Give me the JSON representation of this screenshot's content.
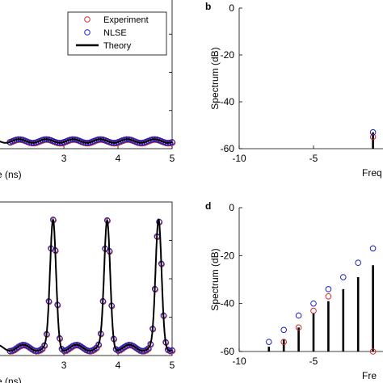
{
  "legend": {
    "position": "top-right",
    "entries": [
      {
        "label": "Experiment",
        "marker": "circle",
        "color": "#d62728"
      },
      {
        "label": "NLSE",
        "marker": "circle",
        "color": "#1f1fbf"
      },
      {
        "label": "Theory",
        "marker": "line",
        "color": "#000000"
      }
    ]
  },
  "chart_data": [
    {
      "panel": "a",
      "type": "line",
      "xlabel": "e (ns)",
      "xlim": [
        2,
        5
      ],
      "xticks": [
        3,
        4,
        5
      ],
      "grid": false,
      "series": [
        {
          "name": "Theory",
          "kind": "line",
          "color": "#000000",
          "shape": "small-ripple",
          "period": 0.5,
          "baseline": 0.05,
          "amplitude": 0.012
        },
        {
          "name": "NLSE",
          "kind": "markers",
          "color": "#1f1fbf",
          "marker": "circle"
        },
        {
          "name": "Experiment",
          "kind": "markers",
          "color": "#d62728",
          "marker": "circle"
        }
      ]
    },
    {
      "panel": "b",
      "type": "stem",
      "title": "b",
      "ylabel": "Spectrum (dB)",
      "xlabel": "Freq",
      "xlim": [
        -10,
        0
      ],
      "ylim": [
        -60,
        0
      ],
      "xticks": [
        -10,
        -5
      ],
      "yticks": [
        0,
        -20,
        -40,
        -60
      ],
      "grid": false,
      "series": [
        {
          "name": "Theory",
          "x": [
            -1,
            0
          ],
          "y": [
            -53,
            -55
          ]
        },
        {
          "name": "NLSE",
          "x": [
            -1,
            0
          ],
          "y": [
            -53,
            -55
          ]
        },
        {
          "name": "Experiment",
          "x": [
            -1,
            0
          ],
          "y": [
            -55,
            -53
          ]
        }
      ]
    },
    {
      "panel": "c",
      "type": "line",
      "xlabel": "e (ns)",
      "xlim": [
        2,
        5
      ],
      "xticks": [
        3,
        4,
        5
      ],
      "grid": false,
      "series": [
        {
          "name": "Theory",
          "kind": "line",
          "color": "#000000",
          "shape": "periodic-pulses",
          "pulse_centers": [
            2.8,
            3.8,
            4.75
          ]
        },
        {
          "name": "NLSE",
          "kind": "markers",
          "color": "#1f1fbf",
          "marker": "circle"
        },
        {
          "name": "Experiment",
          "kind": "markers",
          "color": "#d62728",
          "marker": "circle"
        }
      ]
    },
    {
      "panel": "d",
      "type": "stem",
      "title": "d",
      "ylabel": "Spectrum (dB)",
      "xlabel": "Fre",
      "xlim": [
        -10,
        0
      ],
      "ylim": [
        -60,
        0
      ],
      "xticks": [
        -10,
        -5
      ],
      "yticks": [
        0,
        -20,
        -40,
        -60
      ],
      "grid": false,
      "series": [
        {
          "name": "Theory",
          "x": [
            -8,
            -7,
            -6,
            -5,
            -4,
            -3,
            -2,
            -1,
            0
          ],
          "y": [
            -58,
            -55,
            -50,
            -44,
            -39,
            -34,
            -29,
            -24,
            -20
          ]
        },
        {
          "name": "NLSE",
          "x": [
            -8,
            -7,
            -6,
            -5,
            -4,
            -3,
            -2,
            -1,
            0
          ],
          "y": [
            -56,
            -51,
            -45,
            -40,
            -34,
            -29,
            -23,
            -17,
            -60
          ]
        },
        {
          "name": "Experiment",
          "x": [
            -7,
            -6,
            -5,
            -4,
            -1,
            0
          ],
          "y": [
            -56,
            -50,
            -43,
            -37,
            -60,
            -19
          ]
        }
      ]
    }
  ]
}
